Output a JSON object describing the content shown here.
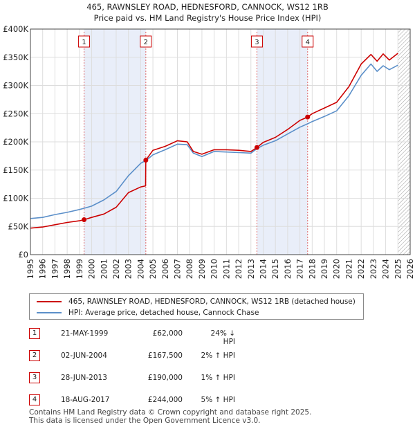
{
  "chart_data": {
    "type": "line",
    "title": "465, RAWNSLEY ROAD, HEDNESFORD, CANNOCK, WS12 1RB",
    "subtitle": "Price paid vs. HM Land Registry's House Price Index (HPI)",
    "xlim": [
      1995,
      2026
    ],
    "ylim": [
      0,
      400000
    ],
    "x_ticks": [
      1995,
      1996,
      1997,
      1998,
      1999,
      2000,
      2001,
      2002,
      2003,
      2004,
      2005,
      2006,
      2007,
      2008,
      2009,
      2010,
      2011,
      2012,
      2013,
      2014,
      2015,
      2016,
      2017,
      2018,
      2019,
      2020,
      2021,
      2022,
      2023,
      2024,
      2025,
      2026
    ],
    "y_ticks": [
      {
        "value": 0,
        "label": "£0"
      },
      {
        "value": 50000,
        "label": "£50K"
      },
      {
        "value": 100000,
        "label": "£100K"
      },
      {
        "value": 150000,
        "label": "£150K"
      },
      {
        "value": 200000,
        "label": "£200K"
      },
      {
        "value": 250000,
        "label": "£250K"
      },
      {
        "value": 300000,
        "label": "£300K"
      },
      {
        "value": 350000,
        "label": "£350K"
      },
      {
        "value": 400000,
        "label": "£400K"
      }
    ],
    "shaded_periods": [
      [
        1999.38,
        2004.42
      ],
      [
        2013.49,
        2017.63
      ]
    ],
    "future_hatch_from": 2025.0,
    "series": [
      {
        "name": "465, RAWNSLEY ROAD, HEDNESFORD, CANNOCK, WS12 1RB (detached house)",
        "color": "#cc0000",
        "points": [
          [
            1995,
            47000
          ],
          [
            1996,
            49000
          ],
          [
            1997,
            53000
          ],
          [
            1998,
            57000
          ],
          [
            1999,
            60000
          ],
          [
            1999.38,
            62000
          ],
          [
            2000,
            66000
          ],
          [
            2001,
            72000
          ],
          [
            2002,
            84000
          ],
          [
            2003,
            110000
          ],
          [
            2004.0,
            120000
          ],
          [
            2004.4,
            122000
          ],
          [
            2004.42,
            167500
          ],
          [
            2005,
            185000
          ],
          [
            2006,
            192000
          ],
          [
            2007,
            202000
          ],
          [
            2007.8,
            200000
          ],
          [
            2008.3,
            183000
          ],
          [
            2009,
            178000
          ],
          [
            2010,
            186000
          ],
          [
            2011,
            186000
          ],
          [
            2012,
            185000
          ],
          [
            2013,
            183000
          ],
          [
            2013.49,
            190000
          ],
          [
            2014,
            199000
          ],
          [
            2015,
            208000
          ],
          [
            2016,
            222000
          ],
          [
            2017,
            238000
          ],
          [
            2017.63,
            244000
          ],
          [
            2018,
            250000
          ],
          [
            2019,
            260000
          ],
          [
            2020,
            270000
          ],
          [
            2021,
            298000
          ],
          [
            2022,
            338000
          ],
          [
            2022.8,
            355000
          ],
          [
            2023.3,
            343000
          ],
          [
            2023.8,
            356000
          ],
          [
            2024.3,
            345000
          ],
          [
            2025,
            357000
          ]
        ]
      },
      {
        "name": "HPI: Average price, detached house, Cannock Chase",
        "color": "#5b8fc9",
        "points": [
          [
            1995,
            64000
          ],
          [
            1996,
            66000
          ],
          [
            1997,
            71000
          ],
          [
            1998,
            75000
          ],
          [
            1999,
            80000
          ],
          [
            2000,
            86000
          ],
          [
            2001,
            97000
          ],
          [
            2002,
            112000
          ],
          [
            2003,
            140000
          ],
          [
            2004,
            162000
          ],
          [
            2004.5,
            168000
          ],
          [
            2005,
            177000
          ],
          [
            2006,
            186000
          ],
          [
            2007,
            196000
          ],
          [
            2007.8,
            195000
          ],
          [
            2008.3,
            180000
          ],
          [
            2009,
            174000
          ],
          [
            2010,
            183000
          ],
          [
            2011,
            182000
          ],
          [
            2012,
            181000
          ],
          [
            2013,
            180000
          ],
          [
            2013.49,
            188000
          ],
          [
            2014,
            194000
          ],
          [
            2015,
            202000
          ],
          [
            2016,
            214000
          ],
          [
            2017,
            226000
          ],
          [
            2017.63,
            232000
          ],
          [
            2018,
            236000
          ],
          [
            2019,
            245000
          ],
          [
            2020,
            255000
          ],
          [
            2021,
            282000
          ],
          [
            2022,
            318000
          ],
          [
            2022.8,
            338000
          ],
          [
            2023.3,
            325000
          ],
          [
            2023.8,
            335000
          ],
          [
            2024.3,
            328000
          ],
          [
            2025,
            336000
          ]
        ]
      }
    ],
    "sales": [
      {
        "n": "1",
        "x": 1999.38,
        "y": 62000
      },
      {
        "n": "2",
        "x": 2004.42,
        "y": 167500
      },
      {
        "n": "3",
        "x": 2013.49,
        "y": 190000
      },
      {
        "n": "4",
        "x": 2017.63,
        "y": 244000
      }
    ]
  },
  "legend": {
    "property_label": "465, RAWNSLEY ROAD, HEDNESFORD, CANNOCK, WS12 1RB (detached house)",
    "hpi_label": "HPI: Average price, detached house, Cannock Chase",
    "property_color": "#cc0000",
    "hpi_color": "#5b8fc9"
  },
  "transactions": [
    {
      "n": "1",
      "date": "21-MAY-1999",
      "price": "£62,000",
      "hpi": "24% ↓ HPI"
    },
    {
      "n": "2",
      "date": "02-JUN-2004",
      "price": "£167,500",
      "hpi": "2% ↑ HPI"
    },
    {
      "n": "3",
      "date": "28-JUN-2013",
      "price": "£190,000",
      "hpi": "1% ↑ HPI"
    },
    {
      "n": "4",
      "date": "18-AUG-2017",
      "price": "£244,000",
      "hpi": "5% ↑ HPI"
    }
  ],
  "footer": {
    "line1": "Contains HM Land Registry data © Crown copyright and database right 2025.",
    "line2": "This data is licensed under the Open Government Licence v3.0."
  }
}
